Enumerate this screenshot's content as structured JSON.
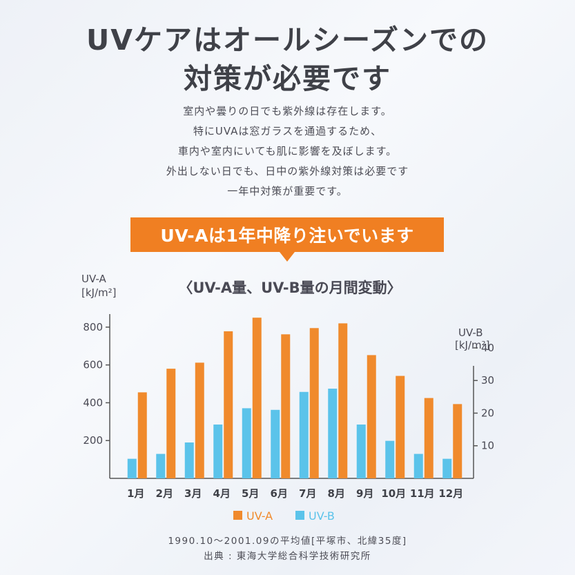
{
  "header": {
    "title_line1": "UVケアはオールシーズンでの",
    "title_line2": "対策が必要です"
  },
  "description": [
    "室内や曇りの日でも紫外線は存在します。",
    "特にUVAは窓ガラスを通過するため、",
    "車内や室内にいても肌に影響を及ぼします。",
    "外出しない日でも、日中の紫外線対策は必要です",
    "一年中対策が重要です。"
  ],
  "banner": {
    "text": "UV-Aは1年中降り注いでいます"
  },
  "colors": {
    "uva": "#f08a2c",
    "uvb": "#5bc3ea",
    "banner": "#f07f22",
    "axis": "#555555"
  },
  "chart_data": {
    "type": "bar",
    "title": "〈UV-A量、UV-B量の月間変動〉",
    "categories": [
      "1月",
      "2月",
      "3月",
      "4月",
      "5月",
      "6月",
      "7月",
      "8月",
      "9月",
      "10月",
      "11月",
      "12月"
    ],
    "left_axis": {
      "label_line1": "UV-A",
      "label_line2": "[kJ/m²]",
      "ticks": [
        200,
        400,
        600,
        800
      ],
      "ylim": [
        0,
        880
      ]
    },
    "right_axis": {
      "label_line1": "UV-B",
      "label_line2": "[kJ/m²]",
      "ticks": [
        10,
        20,
        30,
        40
      ],
      "ylim": [
        0,
        51
      ]
    },
    "series": [
      {
        "name": "UV-A",
        "axis": "left",
        "values": [
          455,
          580,
          612,
          778,
          850,
          762,
          795,
          820,
          652,
          542,
          425,
          393
        ]
      },
      {
        "name": "UV-B",
        "axis": "right",
        "values": [
          6,
          7.5,
          11,
          16.5,
          21.5,
          21,
          26.5,
          27.5,
          16.5,
          11.5,
          7.5,
          6
        ]
      }
    ],
    "legend": {
      "position": "bottom"
    },
    "grid": false
  },
  "footer": {
    "source_line1": "1990.10～2001.09の平均値[平塚市、北緯35度]",
    "source_line2": "出典 : 東海大学総合科学技術研究所"
  }
}
